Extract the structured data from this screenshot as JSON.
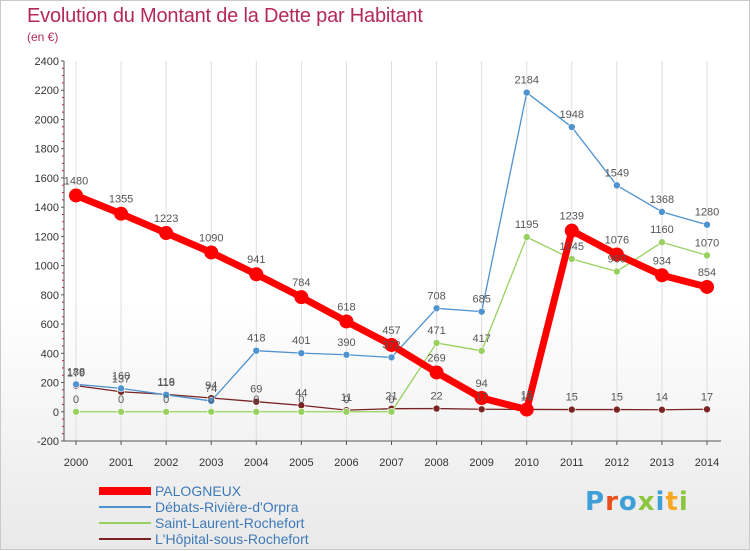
{
  "title": "Evolution du Montant de la Dette par Habitant",
  "subtitle": "(en €)",
  "logo": {
    "text": "Proxiti",
    "colors": [
      "#3fa0d8",
      "#e94e1b",
      "#3fa0d8",
      "#8cc63f",
      "#3fa0d8",
      "#f7a823",
      "#8cc63f"
    ]
  },
  "chart_data": {
    "type": "line",
    "title": "Evolution du Montant de la Dette par Habitant",
    "subtitle": "(en €)",
    "xlabel": "",
    "ylabel": "",
    "x": [
      2000,
      2001,
      2002,
      2003,
      2004,
      2005,
      2006,
      2007,
      2008,
      2009,
      2010,
      2011,
      2012,
      2013,
      2014
    ],
    "ylim": [
      -200,
      2400
    ],
    "yticks": [
      -200,
      0,
      200,
      400,
      600,
      800,
      1000,
      1200,
      1400,
      1600,
      1800,
      2000,
      2200,
      2400
    ],
    "grid": "vertical",
    "legend_position": "bottom-left",
    "series": [
      {
        "name": "PALOGNEUX",
        "color": "#ff0000",
        "values": [
          1480,
          1355,
          1223,
          1090,
          941,
          784,
          618,
          457,
          269,
          94,
          15,
          1239,
          1076,
          934,
          854
        ]
      },
      {
        "name": "Débats-Rivière-d'Orpra",
        "color": "#4e92cf",
        "values": [
          188,
          160,
          116,
          74,
          418,
          401,
          390,
          372,
          708,
          685,
          2184,
          1948,
          1549,
          1368,
          1280
        ]
      },
      {
        "name": "Saint-Laurent-Rochefort",
        "color": "#98d160",
        "values": [
          0,
          0,
          0,
          0,
          0,
          0,
          0,
          0,
          471,
          417,
          1195,
          1045,
          960,
          1160,
          1070
        ]
      },
      {
        "name": "L'Hôpital-sous-Rochefort",
        "color": "#7a2323",
        "values": [
          179,
          137,
          119,
          94,
          69,
          44,
          11,
          21,
          22,
          17,
          16,
          15,
          15,
          14,
          17
        ]
      }
    ]
  }
}
